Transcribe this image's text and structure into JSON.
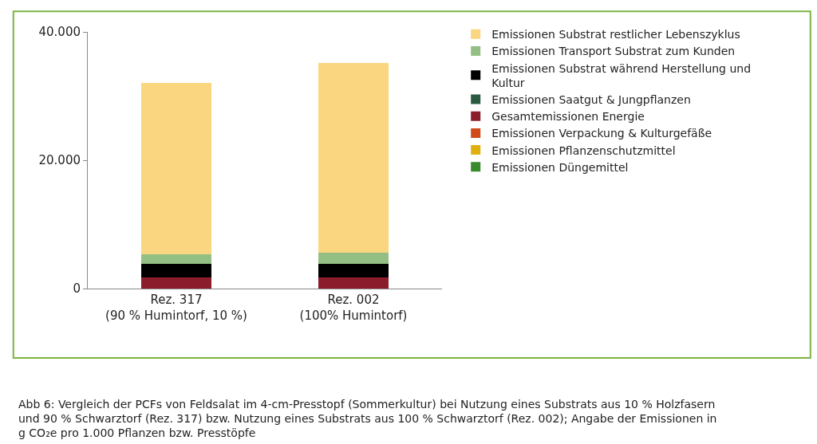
{
  "chart_data": {
    "type": "bar",
    "stacked": true,
    "categories": [
      "Rez. 317\n(90 % Humintorf, 10 %)",
      "Rez. 002\n(100% Humintorf)"
    ],
    "series": [
      {
        "name": "Emissionen Düngemittel",
        "color": "#3a8a2e",
        "values": [
          0,
          0
        ]
      },
      {
        "name": "Emissionen Pflanzenschutzmittel",
        "color": "#e0b010",
        "values": [
          0,
          0
        ]
      },
      {
        "name": "Emissionen Verpackung & Kulturgefäße",
        "color": "#d04a1a",
        "values": [
          0,
          0
        ]
      },
      {
        "name": "Gesamtemissionen Energie",
        "color": "#8b1c2c",
        "values": [
          1700,
          1700
        ]
      },
      {
        "name": "Emissionen Saatgut & Jungpflanzen",
        "color": "#2a5a40",
        "values": [
          0,
          0
        ]
      },
      {
        "name": "Emissionen Substrat während Herstellung und Kultur",
        "color": "#000000",
        "values": [
          2200,
          2200
        ]
      },
      {
        "name": "Emissionen Transport Substrat zum Kunden",
        "color": "#93bf85",
        "values": [
          1500,
          1700
        ]
      },
      {
        "name": "Emissionen Substrat restlicher Lebenszyklus",
        "color": "#fad680",
        "values": [
          26600,
          29600
        ]
      }
    ],
    "ylim": [
      0,
      40000
    ],
    "yticks": [
      {
        "value": 0,
        "label": "0"
      },
      {
        "value": 20000,
        "label": "20.000"
      },
      {
        "value": 40000,
        "label": "40.000"
      }
    ],
    "legend": "right",
    "annotations": [
      "Abb 6: Vergleich der PCFs von Feldsalat im 4-cm-Presstopf (Sommerkultur) bei Nutzung eines Substrats aus 10 % Holzfasern und 90 % Schwarztorf (Rez. 317) bzw. Nutzung eines Substrats aus 100 % Schwarztorf (Rez. 002); Angabe der Emissionen in g CO₂e pro 1.000 Pflanzen bzw. Presstöpfe"
    ]
  }
}
